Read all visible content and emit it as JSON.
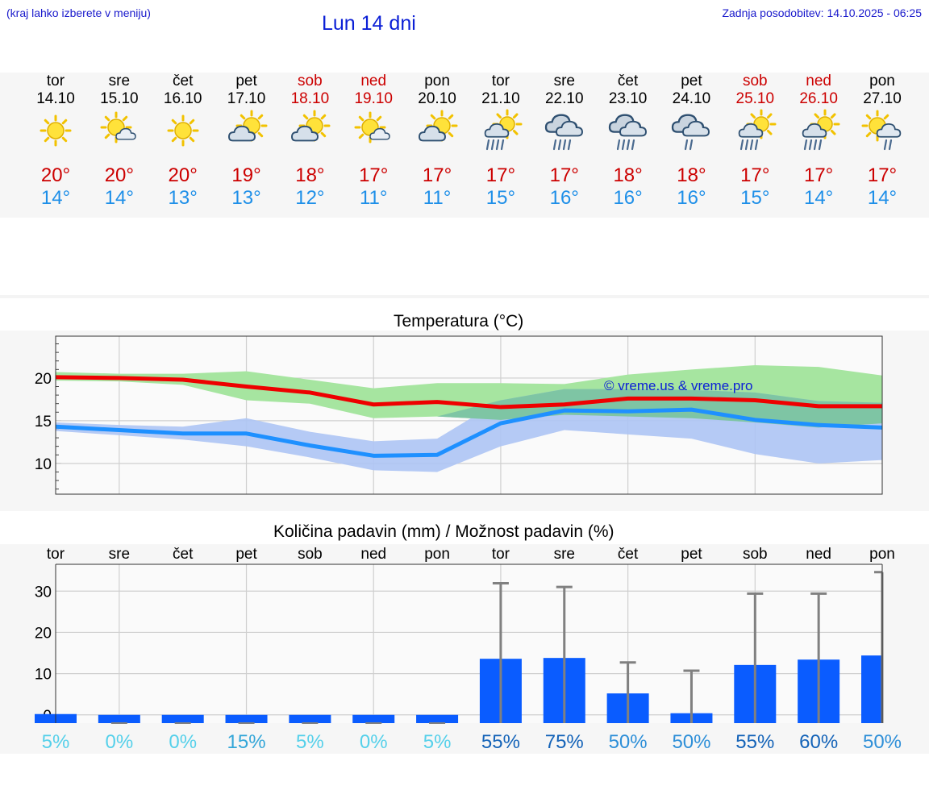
{
  "header": {
    "location_hint": "(kraj lahko izberete v meniju)",
    "title": "Lun 14 dni",
    "updated": "Zadnja posodobitev: 14.10.2025 - 06:25"
  },
  "colors": {
    "max_temp": "#ee0000",
    "min_temp": "#1e90ff",
    "max_range": "#a6e5a0",
    "min_range": "#adc4f4",
    "overlap": "#7ec5a4",
    "precip_bar": "#0a5cff",
    "error_bar": "#808080"
  },
  "days": [
    {
      "name": "tor",
      "date": "14.10",
      "weekend": false,
      "icon": "sun-icon",
      "max": "20°",
      "min": "14°"
    },
    {
      "name": "sre",
      "date": "15.10",
      "weekend": false,
      "icon": "sun-small-cloud-icon",
      "max": "20°",
      "min": "14°"
    },
    {
      "name": "čet",
      "date": "16.10",
      "weekend": false,
      "icon": "sun-icon",
      "max": "20°",
      "min": "13°"
    },
    {
      "name": "pet",
      "date": "17.10",
      "weekend": false,
      "icon": "partly-cloudy-icon",
      "max": "19°",
      "min": "13°"
    },
    {
      "name": "sob",
      "date": "18.10",
      "weekend": true,
      "icon": "partly-cloudy-icon",
      "max": "18°",
      "min": "12°"
    },
    {
      "name": "ned",
      "date": "19.10",
      "weekend": true,
      "icon": "sun-small-cloud-icon",
      "max": "17°",
      "min": "11°"
    },
    {
      "name": "pon",
      "date": "20.10",
      "weekend": false,
      "icon": "partly-cloudy-icon",
      "max": "17°",
      "min": "11°"
    },
    {
      "name": "tor",
      "date": "21.10",
      "weekend": false,
      "icon": "sun-rain-icon",
      "max": "17°",
      "min": "15°"
    },
    {
      "name": "sre",
      "date": "22.10",
      "weekend": false,
      "icon": "cloud-rain-icon",
      "max": "17°",
      "min": "16°"
    },
    {
      "name": "čet",
      "date": "23.10",
      "weekend": false,
      "icon": "cloud-rain-icon",
      "max": "18°",
      "min": "16°"
    },
    {
      "name": "pet",
      "date": "24.10",
      "weekend": false,
      "icon": "cloud-light-rain-icon",
      "max": "18°",
      "min": "16°"
    },
    {
      "name": "sob",
      "date": "25.10",
      "weekend": true,
      "icon": "sun-rain-icon",
      "max": "17°",
      "min": "15°"
    },
    {
      "name": "ned",
      "date": "26.10",
      "weekend": true,
      "icon": "sun-rain-icon",
      "max": "17°",
      "min": "14°"
    },
    {
      "name": "pon",
      "date": "27.10",
      "weekend": false,
      "icon": "sun-cloud-light-rain-icon",
      "max": "17°",
      "min": "14°"
    }
  ],
  "chart_data": [
    {
      "type": "line",
      "title": "Temperatura (°C)",
      "watermark": "© vreme.us & vreme.pro",
      "x": [
        0,
        1,
        2,
        3,
        4,
        5,
        6,
        7,
        8,
        9,
        10,
        11,
        12,
        13
      ],
      "ylim": [
        6.4,
        24.9
      ],
      "yticks": [
        10,
        15,
        20
      ],
      "grid": true,
      "series": [
        {
          "values": [
            20.1,
            20.0,
            19.8,
            19.0,
            18.3,
            16.9,
            17.2,
            16.6,
            16.9,
            17.6,
            17.6,
            17.4,
            16.7,
            16.7
          ]
        },
        {
          "values": [
            14.3,
            13.9,
            13.5,
            13.5,
            12.1,
            10.9,
            11.0,
            14.7,
            16.2,
            16.1,
            16.3,
            15.1,
            14.5,
            14.2
          ]
        }
      ],
      "bands": [
        {
          "low": [
            19.7,
            19.6,
            19.2,
            17.4,
            17.0,
            15.3,
            15.5,
            15.1,
            15.7,
            15.5,
            15.3,
            14.8,
            14.2,
            14.7
          ],
          "high": [
            20.7,
            20.5,
            20.5,
            20.8,
            19.8,
            18.8,
            19.4,
            19.4,
            19.3,
            20.4,
            21.0,
            21.5,
            21.3,
            20.3
          ]
        },
        {
          "low": [
            13.8,
            13.3,
            12.8,
            12.0,
            10.7,
            9.2,
            9.0,
            12.0,
            13.9,
            13.4,
            12.9,
            11.1,
            10.0,
            10.4
          ],
          "high": [
            14.8,
            14.5,
            14.3,
            15.3,
            13.7,
            12.6,
            12.9,
            17.4,
            18.7,
            18.7,
            18.6,
            18.3,
            17.3,
            17.1
          ]
        }
      ]
    },
    {
      "type": "bar",
      "title": "Količina padavin (mm) / Možnost padavin (%)",
      "categories": [
        "tor",
        "sre",
        "čet",
        "pet",
        "sob",
        "ned",
        "pon",
        "tor",
        "sre",
        "čet",
        "pet",
        "sob",
        "ned",
        "pon"
      ],
      "values": [
        0.2,
        0,
        0,
        0,
        0,
        0,
        0,
        13.6,
        13.8,
        5.2,
        0.4,
        12.1,
        13.4,
        14.4
      ],
      "error_high": [
        0,
        0,
        0,
        0,
        0,
        0,
        0,
        31.9,
        31.0,
        12.7,
        10.7,
        29.4,
        29.4,
        34.6
      ],
      "ylim": [
        -2,
        36.5
      ],
      "yticks": [
        0,
        10,
        20,
        30
      ],
      "probability": [
        "5%",
        "0%",
        "0%",
        "15%",
        "5%",
        "0%",
        "5%",
        "55%",
        "75%",
        "50%",
        "50%",
        "55%",
        "60%",
        "50%"
      ],
      "probability_values": [
        5,
        0,
        0,
        15,
        5,
        0,
        5,
        55,
        75,
        50,
        50,
        55,
        60,
        50
      ]
    }
  ]
}
